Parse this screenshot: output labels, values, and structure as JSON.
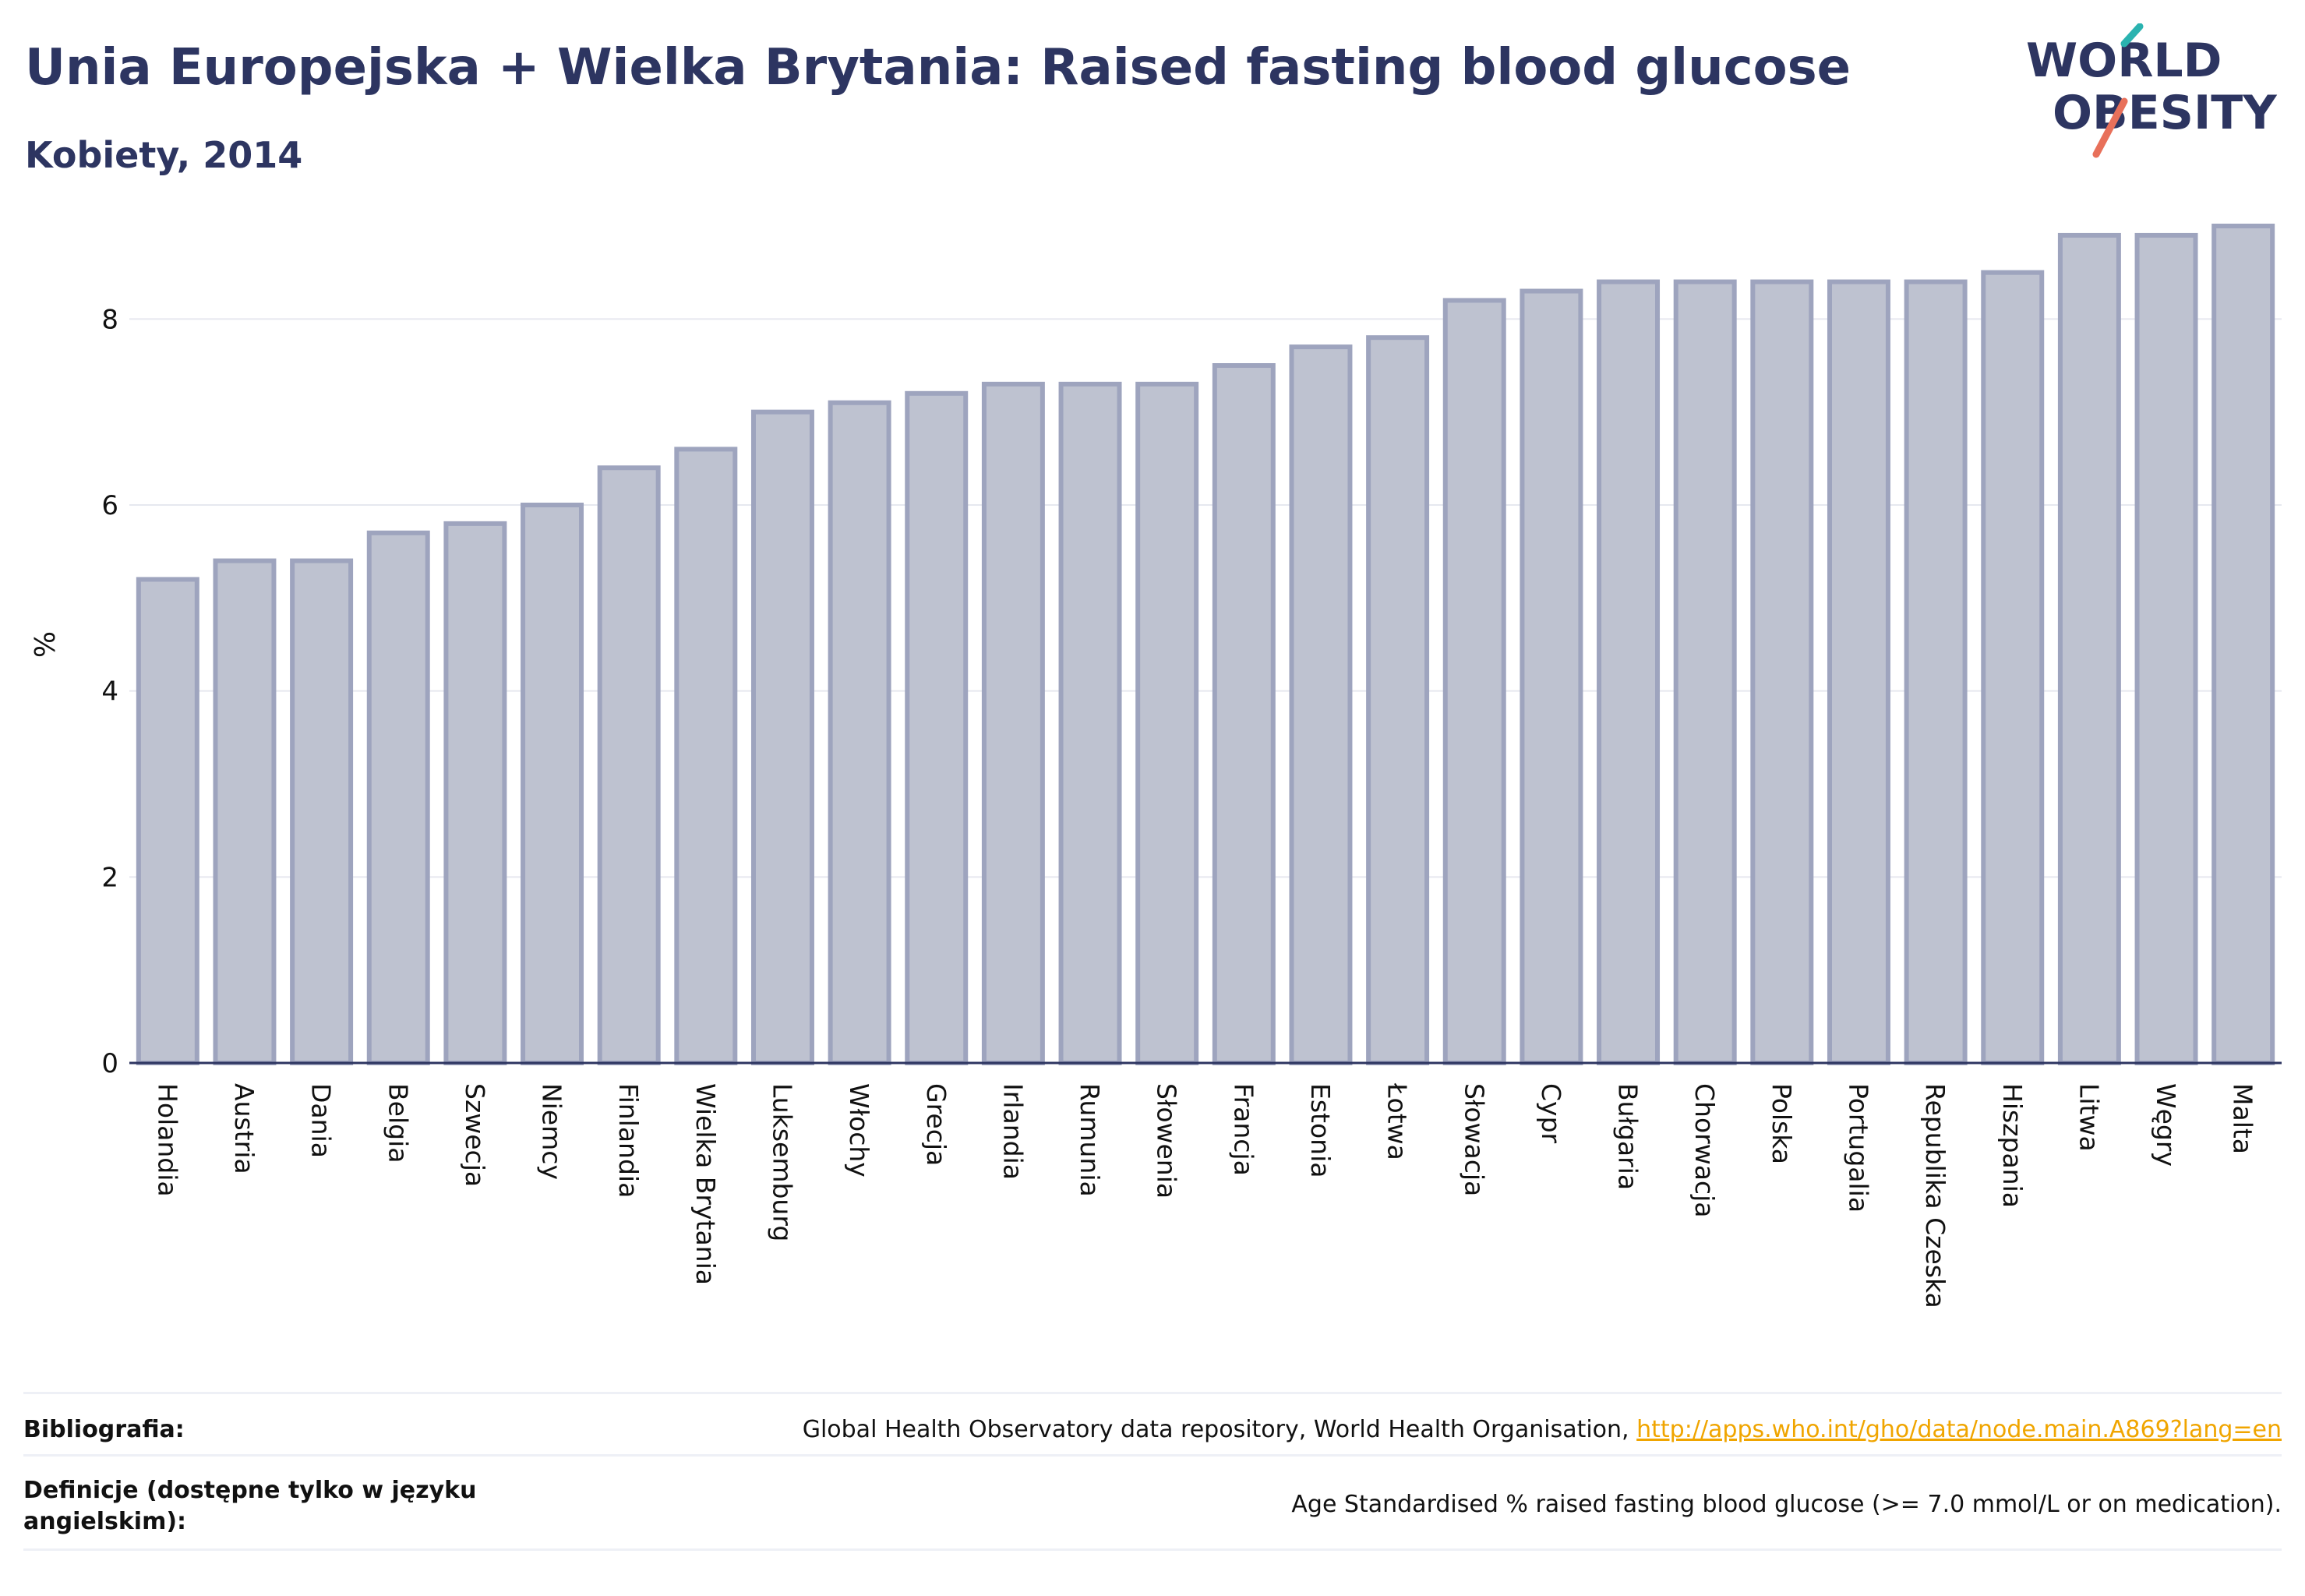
{
  "header": {
    "title": "Unia Europejska + Wielka Brytania: Raised fasting blood glucose",
    "subtitle": "Kobiety, 2014"
  },
  "logo": {
    "line1": "WORLD",
    "line2": "OBESITY",
    "colors": {
      "text": "#2d3561",
      "slash_top": "#2ab3b0",
      "slash_bottom": "#e8705a"
    }
  },
  "colors": {
    "bar_fill": "#bec2d0",
    "bar_stroke": "#9ea4be",
    "grid": "#e6e8ef",
    "axis": "#2d3561",
    "text": "#2d3561"
  },
  "chart_data": {
    "type": "bar",
    "title": "",
    "xlabel": "",
    "ylabel": "%",
    "ylim": [
      0,
      9
    ],
    "yticks": [
      0,
      2,
      4,
      6,
      8
    ],
    "grid": true,
    "categories": [
      "Holandia",
      "Austria",
      "Dania",
      "Belgia",
      "Szwecja",
      "Niemcy",
      "Finlandia",
      "Wielka Brytania",
      "Luksemburg",
      "Włochy",
      "Grecja",
      "Irlandia",
      "Rumunia",
      "Słowenia",
      "Francja",
      "Estonia",
      "Łotwa",
      "Słowacja",
      "Cypr",
      "Bułgaria",
      "Chorwacja",
      "Polska",
      "Portugalia",
      "Republika Czeska",
      "Hiszpania",
      "Litwa",
      "Węgry",
      "Malta"
    ],
    "values": [
      5.2,
      5.4,
      5.4,
      5.7,
      5.8,
      6.0,
      6.4,
      6.6,
      7.0,
      7.1,
      7.2,
      7.3,
      7.3,
      7.3,
      7.5,
      7.7,
      7.8,
      8.2,
      8.3,
      8.4,
      8.4,
      8.4,
      8.4,
      8.4,
      8.5,
      8.9,
      8.9,
      9.0
    ]
  },
  "footer": {
    "bibliography_label": "Bibliografia:",
    "bibliography_text": "Global Health Observatory data repository, World Health Organisation,",
    "bibliography_link": "http://apps.who.int/gho/data/node.main.A869?lang=en",
    "definitions_label": "Definicje (dostępne tylko w języku angielskim):",
    "definitions_text": "Age Standardised % raised fasting blood glucose (>= 7.0 mmol/L or on medication)."
  }
}
